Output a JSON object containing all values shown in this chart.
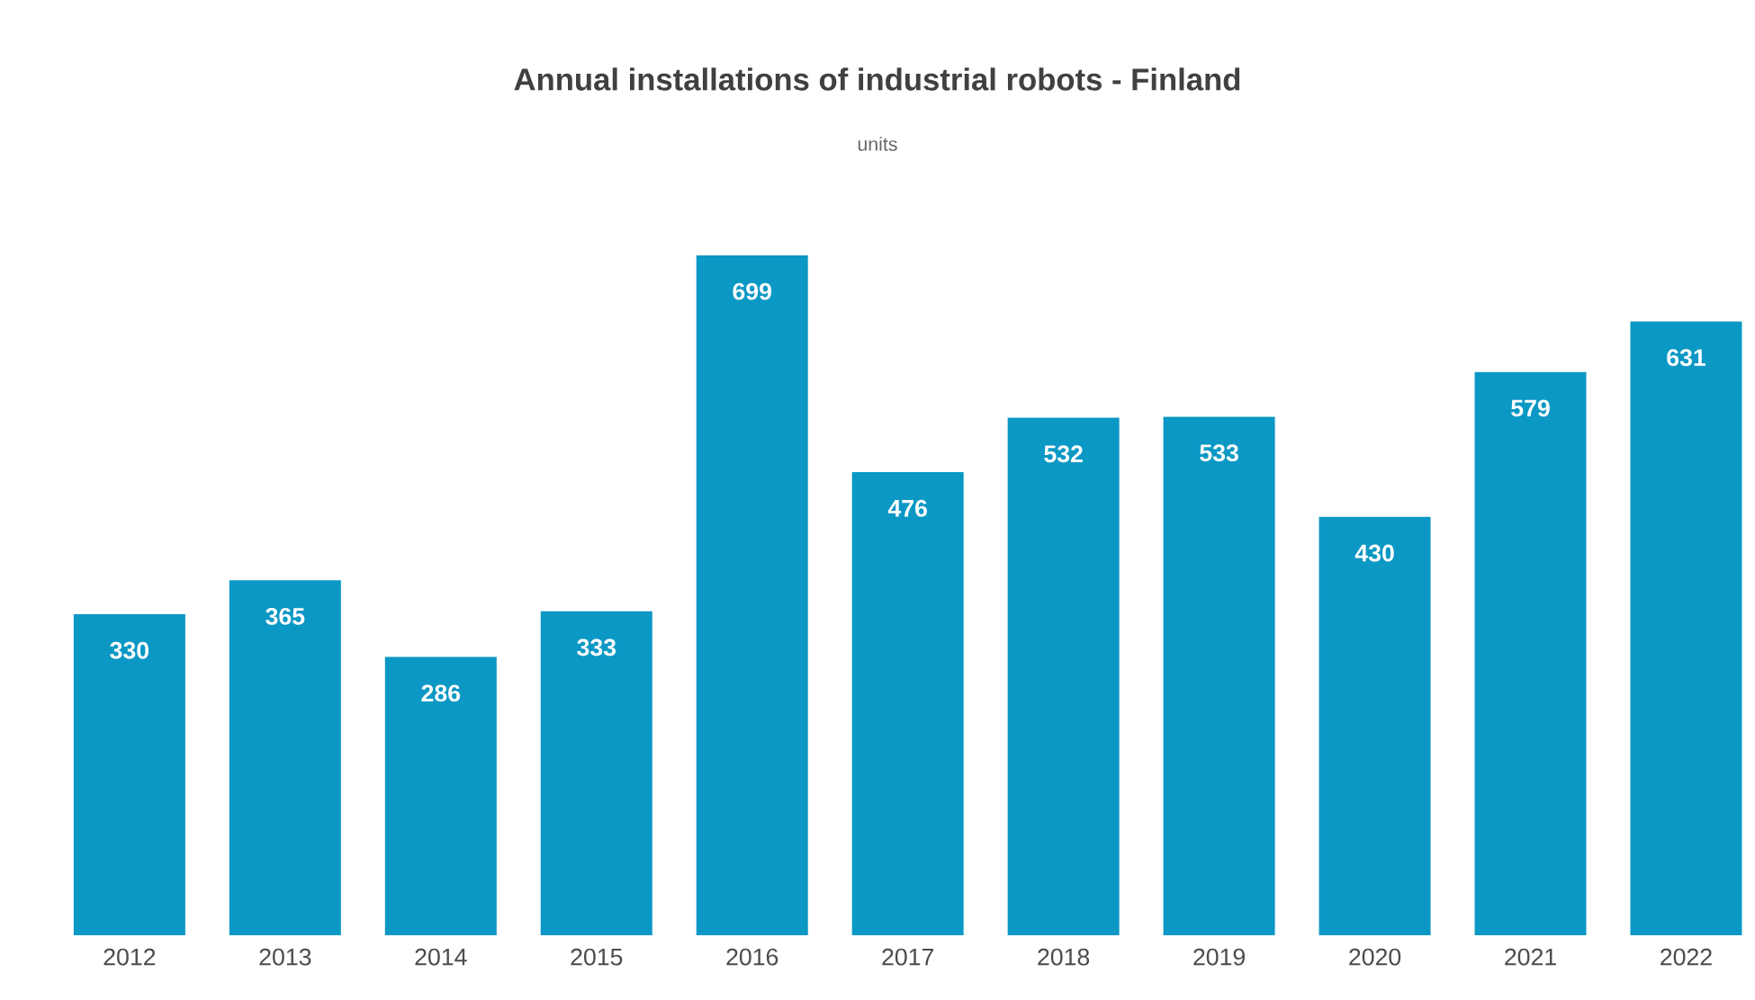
{
  "chart_data": {
    "type": "bar",
    "title": "Annual installations of industrial robots - Finland",
    "subtitle": "units",
    "categories": [
      "2012",
      "2013",
      "2014",
      "2015",
      "2016",
      "2017",
      "2018",
      "2019",
      "2020",
      "2021",
      "2022"
    ],
    "values": [
      330,
      365,
      286,
      333,
      699,
      476,
      532,
      533,
      430,
      579,
      631
    ],
    "color": "#0b98c4",
    "data_labels": true
  }
}
